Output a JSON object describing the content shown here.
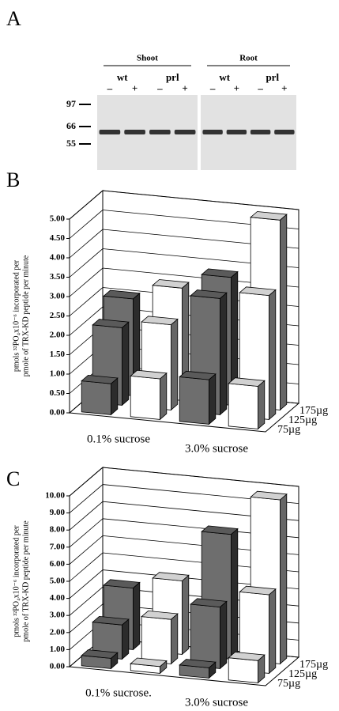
{
  "blot": {
    "panel": "A",
    "groups": [
      {
        "label": "Shoot",
        "genotypes": [
          {
            "label": "wt",
            "lanes": [
              "–",
              "+"
            ]
          },
          {
            "label": "prl",
            "lanes": [
              "–",
              "+"
            ]
          }
        ]
      },
      {
        "label": "Root",
        "genotypes": [
          {
            "label": "wt",
            "lanes": [
              "–",
              "+"
            ]
          },
          {
            "label": "prl",
            "lanes": [
              "–",
              "+"
            ]
          }
        ]
      }
    ],
    "markers": [
      "97",
      "66",
      "55"
    ]
  },
  "chart_data": [
    {
      "type": "bar3d",
      "panel": "B",
      "ylabel": [
        "pmols ³²PO₄x10⁻⁶ incorporated per",
        "pmole of TRX-KD peptide per minute"
      ],
      "categories": [
        "0.1% sucrose",
        null,
        "3.0% sucrose",
        null
      ],
      "colors": [
        "#6e6e6e",
        "#ffffff",
        "#6e6e6e",
        "#ffffff"
      ],
      "series": [
        {
          "name": "75µg",
          "values": [
            0.8,
            1.05,
            1.15,
            1.1
          ]
        },
        {
          "name": "125µg",
          "values": [
            2.0,
            2.2,
            3.0,
            3.2
          ]
        },
        {
          "name": "175µg",
          "values": [
            2.5,
            2.9,
            3.3,
            4.9
          ]
        }
      ],
      "ylim": [
        0,
        5
      ],
      "yticks": [
        {
          "value": 0,
          "label": "0.00"
        },
        {
          "value": 0.5,
          "label": "0.50"
        },
        {
          "value": 1,
          "label": "1.00"
        },
        {
          "value": 1.5,
          "label": "1.50"
        },
        {
          "value": 2,
          "label": "2.00"
        },
        {
          "value": 2.5,
          "label": "2.50"
        },
        {
          "value": 3,
          "label": "3.00"
        },
        {
          "value": 3.5,
          "label": "3.50"
        },
        {
          "value": 4,
          "label": "4.00"
        },
        {
          "value": 4.5,
          "label": "4.50"
        },
        {
          "value": 5,
          "label": "5.00"
        }
      ],
      "grid": true
    },
    {
      "type": "bar3d",
      "panel": "C",
      "ylabel": [
        "pmols ³²PO₄x10⁻⁶ incorporated per",
        "pmole of TRX-KD peptide per minute"
      ],
      "categories": [
        "0.1% sucrose.",
        null,
        "3.0% sucrose",
        null
      ],
      "colors": [
        "#6e6e6e",
        "#ffffff",
        "#6e6e6e",
        "#ffffff"
      ],
      "series": [
        {
          "name": "75µg",
          "values": [
            0.6,
            0.4,
            0.6,
            1.3
          ]
        },
        {
          "name": "125µg",
          "values": [
            2.0,
            2.6,
            3.6,
            4.6
          ]
        },
        {
          "name": "175µg",
          "values": [
            3.6,
            4.3,
            7.3,
            9.6
          ]
        }
      ],
      "ylim": [
        0,
        10
      ],
      "yticks": [
        {
          "value": 0,
          "label": "0.00"
        },
        {
          "value": 1,
          "label": "1.00"
        },
        {
          "value": 2,
          "label": "2.00"
        },
        {
          "value": 3,
          "label": "3.00"
        },
        {
          "value": 4,
          "label": "4.00"
        },
        {
          "value": 5,
          "label": "5.00"
        },
        {
          "value": 6,
          "label": "6.00"
        },
        {
          "value": 7,
          "label": "7.00"
        },
        {
          "value": 8,
          "label": "8.00"
        },
        {
          "value": 9,
          "label": "9.00"
        },
        {
          "value": 10,
          "label": "10.00"
        }
      ],
      "grid": true
    }
  ]
}
